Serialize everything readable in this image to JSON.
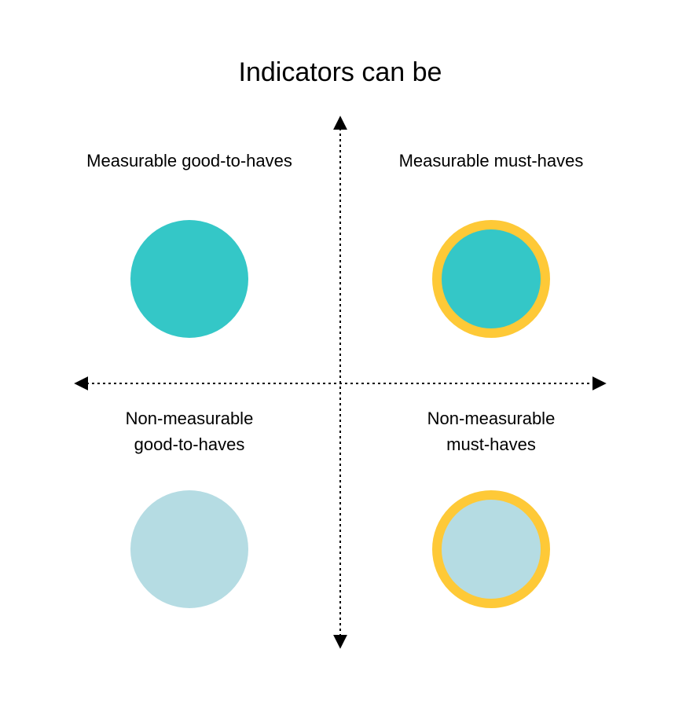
{
  "title": "Indicators can be",
  "quadrants": {
    "top_left": {
      "label": "Measurable good-to-haves",
      "fill": "#34c7c7",
      "ring": false
    },
    "top_right": {
      "label": "Measurable must-haves",
      "fill": "#34c7c7",
      "ring": true
    },
    "bottom_left": {
      "label_line1": "Non-measurable",
      "label_line2": "good-to-haves",
      "fill": "#b5dce3",
      "ring": false
    },
    "bottom_right": {
      "label_line1": "Non-measurable",
      "label_line2": "must-haves",
      "fill": "#b5dce3",
      "ring": true
    }
  },
  "colors": {
    "ring": "#fec937",
    "axis": "#000000"
  }
}
